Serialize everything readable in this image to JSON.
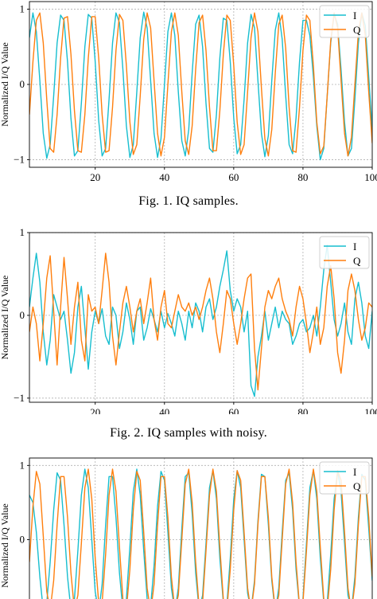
{
  "colors": {
    "I": "#17becf",
    "Q": "#ff7f0e",
    "grid": "#b0b0b0"
  },
  "captions": [
    "Fig. 1.  IQ samples.",
    "Fig. 2.  IQ samples with noisy.",
    ""
  ],
  "chart_data": [
    {
      "type": "line",
      "title": "",
      "xlabel": "",
      "ylabel": "Normalized I/Q Value",
      "xlim": [
        1,
        100
      ],
      "ylim": [
        -1.1,
        1.1
      ],
      "xticks": [
        "20",
        "40",
        "60",
        "80",
        "100"
      ],
      "yticks": [
        "1",
        "0",
        "−1"
      ],
      "grid": true,
      "legend": "top-right",
      "series": [
        {
          "name": "I",
          "x_step": 1,
          "x_start": 1,
          "values": [
            0.62,
            0.95,
            0.7,
            0.05,
            -0.65,
            -0.98,
            -0.8,
            -0.15,
            0.55,
            0.92,
            0.85,
            0.3,
            -0.45,
            -0.95,
            -0.88,
            -0.25,
            0.5,
            0.93,
            0.88,
            0.3,
            -0.48,
            -0.95,
            -0.85,
            -0.2,
            0.55,
            0.95,
            0.82,
            0.2,
            -0.55,
            -0.97,
            -0.8,
            -0.1,
            0.62,
            0.96,
            0.75,
            0.05,
            -0.65,
            -0.97,
            -0.72,
            0.0,
            0.7,
            0.95,
            0.65,
            -0.1,
            -0.75,
            -0.95,
            -0.6,
            0.15,
            0.8,
            0.92,
            0.5,
            -0.25,
            -0.85,
            -0.9,
            -0.4,
            0.35,
            0.88,
            0.85,
            0.3,
            -0.45,
            -0.92,
            -0.8,
            -0.2,
            0.55,
            0.93,
            0.75,
            0.05,
            -0.65,
            -0.96,
            -0.68,
            0.05,
            0.72,
            0.95,
            0.6,
            -0.15,
            -0.8,
            -0.92,
            -0.45,
            0.3,
            0.85,
            0.85,
            0.65,
            0.1,
            -0.55,
            -1.0,
            -0.85,
            -0.15,
            0.55,
            0.93,
            0.8,
            0.2,
            -0.5,
            -0.95,
            -0.85,
            -0.2,
            0.55,
            0.95,
            0.78,
            0.1,
            -0.6
          ]
        },
        {
          "name": "Q",
          "x_step": 1,
          "x_start": 1,
          "values": [
            -0.4,
            0.3,
            0.85,
            0.95,
            0.55,
            -0.2,
            -0.85,
            -0.9,
            -0.4,
            0.35,
            0.88,
            0.9,
            0.4,
            -0.35,
            -0.88,
            -0.9,
            -0.4,
            0.35,
            0.9,
            0.9,
            0.35,
            -0.4,
            -0.9,
            -0.88,
            -0.3,
            0.45,
            0.93,
            0.85,
            0.25,
            -0.5,
            -0.93,
            -0.8,
            -0.15,
            0.6,
            0.95,
            0.75,
            0.05,
            -0.65,
            -0.95,
            -0.7,
            0.0,
            0.7,
            0.95,
            0.65,
            -0.1,
            -0.75,
            -0.93,
            -0.55,
            0.2,
            0.82,
            0.92,
            0.45,
            -0.3,
            -0.88,
            -0.88,
            -0.35,
            0.4,
            0.92,
            0.85,
            0.25,
            -0.5,
            -0.93,
            -0.8,
            -0.1,
            0.62,
            0.95,
            0.7,
            -0.05,
            -0.72,
            -0.95,
            -0.6,
            0.15,
            0.8,
            0.92,
            0.48,
            -0.3,
            -0.88,
            -0.9,
            -0.3,
            0.45,
            0.92,
            0.85,
            0.25,
            -0.5,
            -0.92,
            -0.82,
            -0.15,
            0.58,
            0.95,
            0.75,
            0.05,
            -0.65,
            -0.95,
            -0.7,
            0.0,
            0.7,
            0.95,
            0.65,
            -0.1,
            -0.78
          ]
        }
      ]
    },
    {
      "type": "line",
      "title": "",
      "xlabel": "",
      "ylabel": "Normalized I/Q Value",
      "xlim": [
        1,
        100
      ],
      "ylim": [
        -1.05,
        1.0
      ],
      "xticks": [
        "20",
        "40",
        "60",
        "80",
        "100"
      ],
      "yticks": [
        "1",
        "0",
        "−1"
      ],
      "grid": true,
      "legend": "top-right",
      "series": [
        {
          "name": "I",
          "x_step": 1,
          "x_start": 1,
          "values": [
            0.1,
            0.45,
            0.75,
            0.4,
            -0.2,
            -0.6,
            -0.3,
            0.25,
            0.1,
            -0.05,
            0.05,
            -0.3,
            -0.7,
            -0.45,
            0.1,
            0.35,
            -0.15,
            -0.65,
            -0.2,
            0.05,
            -0.1,
            0.08,
            -0.25,
            -0.35,
            0.1,
            0.0,
            -0.4,
            -0.2,
            0.15,
            -0.05,
            -0.35,
            0.05,
            0.1,
            -0.3,
            -0.15,
            0.08,
            -0.05,
            -0.2,
            0.05,
            -0.15,
            0.02,
            -0.1,
            -0.25,
            0.05,
            -0.1,
            -0.3,
            0.05,
            -0.15,
            0.15,
            0.05,
            -0.2,
            0.1,
            0.2,
            -0.05,
            0.1,
            0.35,
            0.55,
            0.78,
            0.3,
            0.05,
            0.2,
            0.1,
            -0.2,
            0.05,
            -0.85,
            -0.98,
            -0.5,
            -0.25,
            0.05,
            -0.3,
            -0.1,
            0.1,
            -0.15,
            0.05,
            -0.05,
            -0.1,
            -0.35,
            -0.25,
            -0.1,
            -0.05,
            -0.2,
            -0.15,
            0.0,
            -0.25,
            0.1,
            0.55,
            0.85,
            0.4,
            -0.05,
            -0.25,
            -0.1,
            0.15,
            -0.2,
            -0.35,
            0.2,
            0.4,
            0.15,
            -0.25,
            -0.4,
            0.05
          ]
        },
        {
          "name": "Q",
          "x_step": 1,
          "x_start": 1,
          "values": [
            -0.2,
            0.1,
            -0.1,
            -0.55,
            -0.1,
            0.45,
            0.72,
            0.05,
            -0.6,
            0.1,
            0.7,
            0.2,
            -0.35,
            0.1,
            0.4,
            -0.3,
            -0.55,
            0.25,
            0.05,
            0.1,
            -0.1,
            0.3,
            0.75,
            0.4,
            -0.25,
            -0.6,
            -0.2,
            0.15,
            0.35,
            0.1,
            -0.2,
            0.05,
            0.2,
            -0.1,
            0.15,
            0.45,
            -0.05,
            -0.3,
            0.1,
            0.3,
            -0.1,
            -0.15,
            0.05,
            0.25,
            0.1,
            0.05,
            0.15,
            0.0,
            0.1,
            -0.05,
            0.1,
            0.3,
            0.45,
            0.2,
            -0.2,
            -0.45,
            -0.1,
            0.3,
            0.2,
            -0.1,
            -0.35,
            -0.1,
            0.2,
            0.45,
            0.5,
            -0.4,
            -0.9,
            -0.4,
            0.1,
            0.3,
            0.2,
            0.35,
            0.45,
            0.2,
            0.05,
            -0.05,
            -0.25,
            0.1,
            0.35,
            0.2,
            -0.1,
            -0.45,
            -0.2,
            0.1,
            -0.35,
            -0.15,
            0.35,
            0.6,
            0.2,
            -0.45,
            -0.7,
            -0.3,
            0.3,
            0.5,
            0.3,
            -0.05,
            -0.3,
            -0.15,
            0.15,
            0.1
          ]
        }
      ]
    },
    {
      "type": "line",
      "title": "",
      "xlabel": "",
      "ylabel": "Normalized I/Q Value",
      "xlim": [
        1,
        100
      ],
      "ylim": [
        -1.1,
        1.1
      ],
      "xticks": [],
      "yticks": [
        "1",
        "0"
      ],
      "grid": true,
      "legend": "top-right",
      "series": [
        {
          "name": "I",
          "x_step": 1,
          "x_start": 1,
          "values": [
            0.6,
            0.5,
            0.1,
            -0.5,
            -0.95,
            -0.85,
            -0.3,
            0.4,
            0.9,
            0.8,
            0.2,
            -0.5,
            -0.95,
            -0.8,
            -0.15,
            0.6,
            0.95,
            0.7,
            0.0,
            -0.7,
            -0.98,
            -0.6,
            0.2,
            0.85,
            0.85,
            0.3,
            -0.45,
            -0.95,
            -0.8,
            -0.1,
            0.65,
            0.95,
            0.6,
            -0.15,
            -0.8,
            -0.9,
            -0.35,
            0.45,
            0.92,
            0.8,
            0.1,
            -0.65,
            -0.98,
            -0.65,
            0.15,
            0.85,
            0.9,
            0.35,
            -0.45,
            -0.95,
            -0.75,
            -0.05,
            0.7,
            0.93,
            0.55,
            -0.25,
            -0.85,
            -0.88,
            -0.25,
            0.55,
            0.93,
            0.7,
            0.0,
            -0.72,
            -0.95,
            -0.55,
            0.25,
            0.88,
            0.85,
            0.2,
            -0.55,
            -0.98,
            -0.65,
            0.1,
            0.8,
            0.9,
            0.4,
            -0.4,
            -0.92,
            -0.8,
            -0.05,
            0.7,
            0.93,
            0.55,
            -0.25,
            -0.85,
            -0.85,
            -0.2,
            0.55,
            0.92,
            0.65,
            -0.05,
            -0.75,
            -0.95,
            -0.5,
            0.3,
            0.88,
            0.8,
            0.15,
            -0.55
          ]
        },
        {
          "name": "Q",
          "x_step": 1,
          "x_start": 1,
          "values": [
            -0.3,
            0.45,
            0.92,
            0.75,
            0.05,
            -0.7,
            -0.95,
            -0.55,
            0.2,
            0.85,
            0.85,
            0.3,
            -0.45,
            -0.95,
            -0.75,
            -0.05,
            0.7,
            0.95,
            0.55,
            -0.25,
            -0.85,
            -0.85,
            -0.2,
            0.6,
            0.95,
            0.65,
            -0.1,
            -0.8,
            -0.95,
            -0.4,
            0.4,
            0.92,
            0.8,
            0.1,
            -0.65,
            -0.98,
            -0.6,
            0.2,
            0.85,
            0.85,
            0.3,
            -0.5,
            -0.95,
            -0.75,
            0.0,
            0.75,
            0.95,
            0.5,
            -0.3,
            -0.9,
            -0.85,
            -0.15,
            0.6,
            0.95,
            0.65,
            -0.1,
            -0.8,
            -0.95,
            -0.4,
            0.4,
            0.93,
            0.8,
            0.1,
            -0.65,
            -0.97,
            -0.6,
            0.2,
            0.85,
            0.85,
            0.3,
            -0.5,
            -0.95,
            -0.75,
            0.0,
            0.75,
            0.95,
            0.5,
            -0.3,
            -0.9,
            -0.85,
            -0.15,
            0.6,
            0.95,
            0.65,
            -0.1,
            -0.8,
            -0.95,
            -0.4,
            0.4,
            0.93,
            0.8,
            0.1,
            -0.65,
            -0.97,
            -0.6,
            0.2,
            0.85,
            0.85,
            0.3,
            -0.5
          ]
        }
      ]
    }
  ]
}
